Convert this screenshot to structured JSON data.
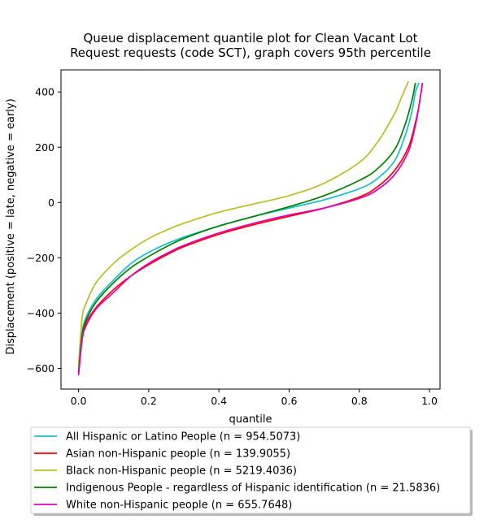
{
  "chart_data": {
    "type": "line",
    "title_lines": [
      "Queue displacement quantile plot for Clean Vacant Lot",
      "Request  requests (code SCT), graph covers 95th percentile"
    ],
    "xlabel": "quantile",
    "ylabel": "Displacement (positive = late, negative = early)",
    "xlim": [
      -0.05,
      1.03
    ],
    "ylim": [
      -675,
      480
    ],
    "xticks": [
      0.0,
      0.2,
      0.4,
      0.6,
      0.8,
      1.0
    ],
    "xtick_labels": [
      "0.0",
      "0.2",
      "0.4",
      "0.6",
      "0.8",
      "1.0"
    ],
    "yticks": [
      -600,
      -400,
      -200,
      0,
      200,
      400
    ],
    "ytick_labels": [
      "−600",
      "−400",
      "−200",
      "0",
      "200",
      "400"
    ],
    "grid": false,
    "legend_position": "below",
    "series": [
      {
        "name": "All Hispanic or Latino People (n = 954.5073)",
        "color": "#17becf",
        "x": [
          0.0,
          0.01,
          0.02,
          0.05,
          0.1,
          0.15,
          0.2,
          0.25,
          0.3,
          0.4,
          0.5,
          0.6,
          0.7,
          0.8,
          0.85,
          0.9,
          0.93,
          0.95,
          0.96,
          0.97
        ],
        "y": [
          -615,
          -480,
          -420,
          -350,
          -280,
          -220,
          -180,
          -150,
          -125,
          -85,
          -50,
          -20,
          10,
          50,
          85,
          150,
          240,
          330,
          400,
          433
        ]
      },
      {
        "name": "Asian non-Hispanic people (n = 139.9055)",
        "color": "#ff0000",
        "x": [
          0.0,
          0.01,
          0.02,
          0.05,
          0.1,
          0.15,
          0.2,
          0.25,
          0.3,
          0.4,
          0.5,
          0.6,
          0.7,
          0.8,
          0.85,
          0.9,
          0.94,
          0.96,
          0.97,
          0.98
        ],
        "y": [
          -620,
          -490,
          -440,
          -380,
          -315,
          -265,
          -225,
          -190,
          -160,
          -115,
          -80,
          -50,
          -20,
          20,
          55,
          115,
          200,
          290,
          350,
          433
        ]
      },
      {
        "name": "Black non-Hispanic people (n = 5219.4036)",
        "color": "#bcbd22",
        "x": [
          0.0,
          0.01,
          0.02,
          0.05,
          0.1,
          0.15,
          0.2,
          0.25,
          0.3,
          0.4,
          0.5,
          0.6,
          0.7,
          0.8,
          0.85,
          0.9,
          0.92,
          0.94
        ],
        "y": [
          -590,
          -420,
          -370,
          -290,
          -220,
          -170,
          -130,
          -100,
          -75,
          -35,
          -5,
          25,
          70,
          145,
          215,
          320,
          380,
          438
        ]
      },
      {
        "name": "Indigenous People - regardless of Hispanic identification (n = 21.5836)",
        "color": "#008000",
        "x": [
          0.0,
          0.01,
          0.02,
          0.05,
          0.1,
          0.15,
          0.2,
          0.25,
          0.3,
          0.4,
          0.5,
          0.6,
          0.7,
          0.8,
          0.85,
          0.9,
          0.93,
          0.95,
          0.96
        ],
        "y": [
          -615,
          -480,
          -430,
          -360,
          -290,
          -235,
          -195,
          -160,
          -130,
          -85,
          -50,
          -15,
          25,
          80,
          120,
          190,
          280,
          370,
          433
        ]
      },
      {
        "name": "White non-Hispanic people (n = 655.7648)",
        "color": "#e000c0",
        "x": [
          0.0,
          0.01,
          0.02,
          0.05,
          0.1,
          0.15,
          0.2,
          0.25,
          0.3,
          0.4,
          0.5,
          0.6,
          0.7,
          0.8,
          0.85,
          0.9,
          0.94,
          0.96,
          0.97,
          0.98
        ],
        "y": [
          -625,
          -500,
          -450,
          -385,
          -325,
          -265,
          -220,
          -185,
          -155,
          -110,
          -75,
          -45,
          -20,
          15,
          45,
          100,
          185,
          280,
          350,
          433
        ]
      }
    ]
  }
}
